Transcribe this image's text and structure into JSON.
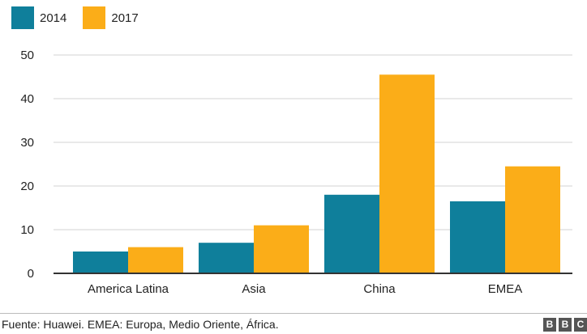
{
  "chart_data": {
    "type": "bar",
    "categories": [
      "America Latina",
      "Asia",
      "China",
      "EMEA"
    ],
    "series": [
      {
        "name": "2014",
        "color": "#0f7f9b",
        "values": [
          5,
          7,
          18,
          16.5
        ]
      },
      {
        "name": "2017",
        "color": "#fbad18",
        "values": [
          6,
          11,
          45.5,
          24.5
        ]
      }
    ],
    "yticks": [
      0,
      10,
      20,
      30,
      40,
      50
    ],
    "ylim": [
      0,
      50
    ],
    "grid": true,
    "legend": "top-left",
    "title": "",
    "xlabel": "",
    "ylabel": ""
  },
  "footer": {
    "source": "Fuente: Huawei. EMEA: Europa, Medio Oriente, África.",
    "logo_letters": [
      "B",
      "B",
      "C"
    ]
  }
}
